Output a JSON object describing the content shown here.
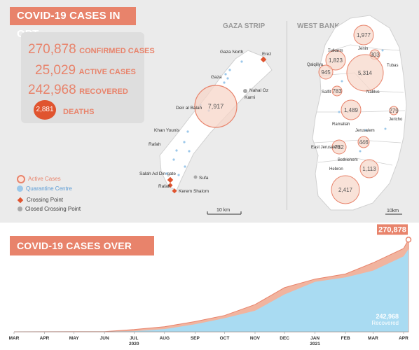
{
  "header": {
    "title": "COVID-19 CASES IN OPT"
  },
  "stats": {
    "confirmed_value": "270,878",
    "confirmed_label": "CONFIRMED CASES",
    "active_value": "25,029",
    "active_label": "ACTIVE CASES",
    "recovered_value": "242,968",
    "recovered_label": "RECOVERED",
    "deaths_value": "2,881",
    "deaths_label": "DEATHS"
  },
  "legend": {
    "active": "Active Cases",
    "quarantine": "Quarantine Centre",
    "crossing": "Crossing Point",
    "closed": "Closed Crossing Point"
  },
  "gaza": {
    "title": "GAZA STRIP",
    "places": [
      "Gaza North",
      "Erez",
      "Gaza",
      "Nahal Oz",
      "Karni",
      "Deir al Balah",
      "Khan Younis",
      "Rafah",
      "Salah Ad Din gate",
      "Rafah",
      "Sufa",
      "Kerem Shalom"
    ],
    "circle_value": "7,917",
    "scale": "10 km"
  },
  "westbank": {
    "title": "WEST BANK",
    "places": [
      "Jenin",
      "Tulkarm",
      "Tubas",
      "Qalqiliya",
      "Salfit",
      "Nablus",
      "Jericho",
      "Ramallah",
      "Jerusalem",
      "East Jerusalem",
      "Bethlehem",
      "Hebron"
    ],
    "circle_values": [
      "1,977",
      "1,823",
      "303",
      "945",
      "5,314",
      "783",
      "1,489",
      "279",
      "732",
      "446",
      "1,113",
      "2,417"
    ],
    "scale": "10km"
  },
  "colors": {
    "accent": "#e8836b",
    "recovered": "#a9dbf2",
    "active": "#f1b49f",
    "death": "#e0542f"
  },
  "chart_data": {
    "type": "area",
    "title": "COVID-19 CASES OVER TIME",
    "x_tick_labels": [
      "MAR",
      "APR",
      "MAY",
      "JUN",
      "JUL",
      "AUG",
      "SEP",
      "OCT",
      "NOV",
      "DEC",
      "JAN",
      "FEB",
      "MAR",
      "APR"
    ],
    "x_year_labels": [
      "2020",
      "2021"
    ],
    "x": [
      "2020-03-01",
      "2020-04-01",
      "2020-05-01",
      "2020-06-01",
      "2020-07-01",
      "2020-08-01",
      "2020-09-01",
      "2020-10-01",
      "2020-11-01",
      "2020-12-01",
      "2021-01-01",
      "2021-02-01",
      "2021-03-01",
      "2021-04-01",
      "2021-04-06"
    ],
    "series": [
      {
        "name": "Recovered",
        "values": [
          0,
          200,
          350,
          400,
          1800,
          8000,
          22000,
          40000,
          62000,
          110000,
          147000,
          160000,
          180000,
          222000,
          242968
        ]
      },
      {
        "name": "",
        "values": [
          0,
          260,
          380,
          600,
          6500,
          15000,
          30000,
          48000,
          80000,
          130000,
          155000,
          170000,
          203000,
          245000,
          270878
        ]
      }
    ],
    "annotations": {
      "end_total": "270,878",
      "end_recovered": "242,968",
      "end_recovered_label": "Recovered"
    },
    "ylim": [
      0,
      280000
    ]
  }
}
